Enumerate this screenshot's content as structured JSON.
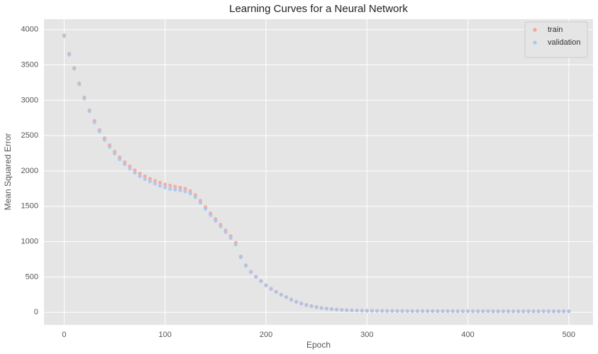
{
  "chart_data": {
    "type": "scatter",
    "title": "Learning Curves for a Neural Network",
    "x_label": "Epoch",
    "y_label": "Mean Squared Error",
    "x": [
      0,
      5,
      10,
      15,
      20,
      25,
      30,
      35,
      40,
      45,
      50,
      55,
      60,
      65,
      70,
      75,
      80,
      85,
      90,
      95,
      100,
      105,
      110,
      115,
      120,
      125,
      130,
      135,
      140,
      145,
      150,
      155,
      160,
      165,
      170,
      175,
      180,
      185,
      190,
      195,
      200,
      205,
      210,
      215,
      220,
      225,
      230,
      235,
      240,
      245,
      250,
      255,
      260,
      265,
      270,
      275,
      280,
      285,
      290,
      295,
      300,
      305,
      310,
      315,
      320,
      325,
      330,
      335,
      340,
      345,
      350,
      355,
      360,
      365,
      370,
      375,
      380,
      385,
      390,
      395,
      400,
      405,
      410,
      415,
      420,
      425,
      430,
      435,
      440,
      445,
      450,
      455,
      460,
      465,
      470,
      475,
      480,
      485,
      490,
      495,
      500
    ],
    "series": [
      {
        "name": "train",
        "color": "#f7a497",
        "values": [
          3920,
          3660,
          3460,
          3240,
          3040,
          2860,
          2710,
          2580,
          2465,
          2365,
          2275,
          2195,
          2125,
          2065,
          2010,
          1965,
          1925,
          1890,
          1860,
          1835,
          1810,
          1795,
          1780,
          1765,
          1750,
          1715,
          1660,
          1580,
          1490,
          1400,
          1320,
          1240,
          1160,
          1080,
          985,
          790,
          665,
          575,
          505,
          445,
          385,
          335,
          292,
          252,
          217,
          182,
          152,
          127,
          106,
          89,
          75,
          63,
          54,
          47,
          41,
          36,
          32,
          29,
          27,
          25,
          23,
          22,
          21,
          21,
          20,
          20,
          19,
          19,
          19,
          18,
          18,
          18,
          18,
          17,
          17,
          17,
          17,
          17,
          16,
          16,
          16,
          16,
          16,
          16,
          16,
          15,
          15,
          15,
          15,
          15,
          15,
          15,
          15,
          15,
          15,
          15,
          15,
          15,
          15,
          15,
          15
        ]
      },
      {
        "name": "validation",
        "color": "#a7c6ef",
        "values": [
          3905,
          3645,
          3445,
          3225,
          3025,
          2845,
          2690,
          2560,
          2440,
          2340,
          2245,
          2165,
          2095,
          2030,
          1975,
          1925,
          1885,
          1850,
          1820,
          1790,
          1765,
          1745,
          1735,
          1725,
          1710,
          1680,
          1630,
          1550,
          1465,
          1375,
          1295,
          1215,
          1135,
          1050,
          960,
          780,
          660,
          570,
          500,
          440,
          380,
          330,
          288,
          248,
          213,
          178,
          148,
          123,
          103,
          87,
          73,
          61,
          52,
          45,
          39,
          34,
          30,
          28,
          26,
          24,
          22,
          23,
          22,
          22,
          21,
          21,
          20,
          20,
          20,
          19,
          19,
          19,
          19,
          18,
          18,
          18,
          18,
          18,
          17,
          17,
          17,
          17,
          17,
          17,
          17,
          16,
          16,
          16,
          16,
          16,
          16,
          16,
          16,
          16,
          16,
          16,
          16,
          16,
          16,
          16,
          16
        ]
      }
    ],
    "xlim": [
      -20,
      524
    ],
    "ylim": [
      -178,
      4148
    ],
    "xticks": [
      0,
      100,
      200,
      300,
      400,
      500
    ],
    "yticks": [
      0,
      500,
      1000,
      1500,
      2000,
      2500,
      3000,
      3500,
      4000
    ],
    "grid": true,
    "legend": "upper right"
  }
}
